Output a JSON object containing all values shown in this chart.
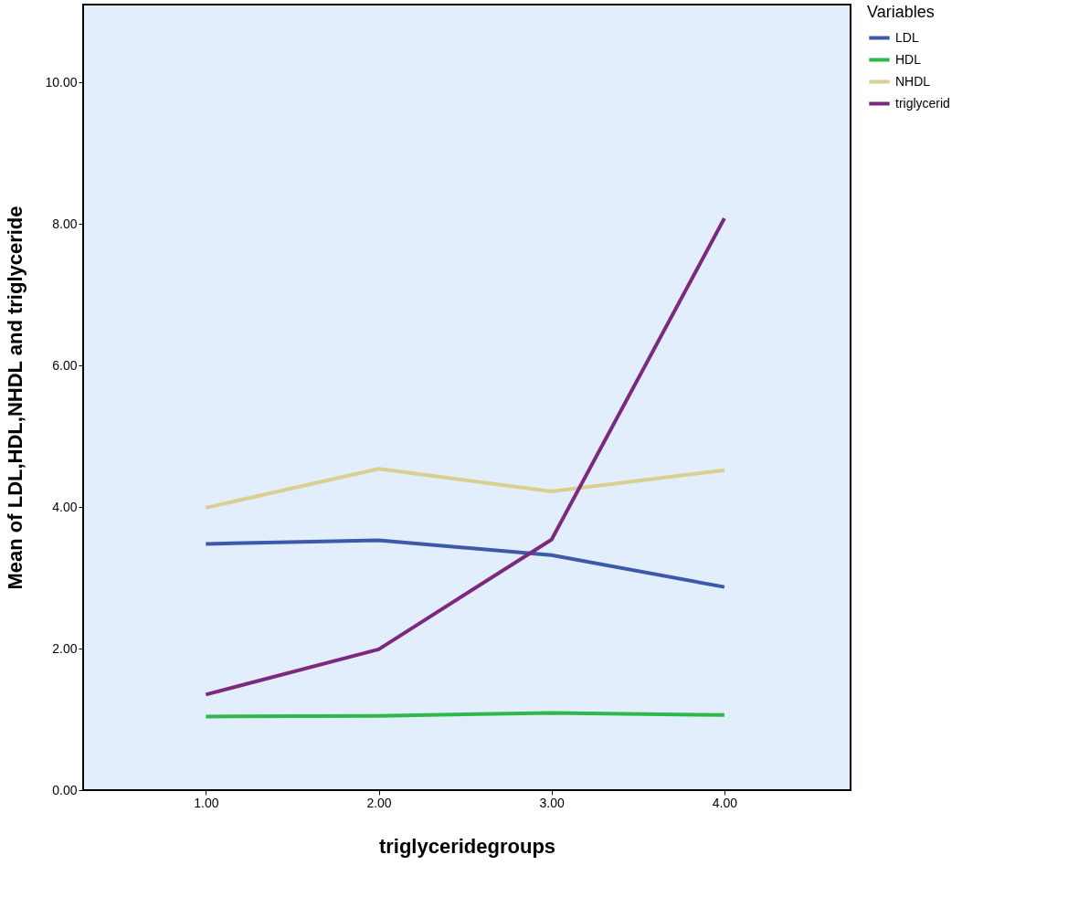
{
  "chart_data": {
    "type": "line",
    "xlabel": "triglyceridegroups",
    "ylabel": "Mean of LDL,HDL,NHDL and triglyceride",
    "legend_title": "Variables",
    "legend": "top right",
    "grid": false,
    "marker": "none",
    "line_style": "solid",
    "x": [
      1,
      2,
      3,
      4
    ],
    "xlim": [
      0.29,
      4.73
    ],
    "xticks": [
      {
        "value": 1,
        "label": "1.00"
      },
      {
        "value": 2,
        "label": "2.00"
      },
      {
        "value": 3,
        "label": "3.00"
      },
      {
        "value": 4,
        "label": "4.00"
      }
    ],
    "ylim": [
      0,
      11.1
    ],
    "yticks": [
      {
        "value": 0,
        "label": "0.00"
      },
      {
        "value": 2,
        "label": "2.00"
      },
      {
        "value": 4,
        "label": "4.00"
      },
      {
        "value": 6,
        "label": "6.00"
      },
      {
        "value": 8,
        "label": "8.00"
      },
      {
        "value": 10,
        "label": "10.00"
      }
    ],
    "series": [
      {
        "name": "LDL",
        "color": "#3e58ac",
        "values": [
          3.48,
          3.53,
          3.32,
          2.87
        ]
      },
      {
        "name": "HDL",
        "color": "#2db84b",
        "values": [
          1.04,
          1.05,
          1.09,
          1.06
        ]
      },
      {
        "name": "NHDL",
        "color": "#d8cf90",
        "values": [
          3.99,
          4.54,
          4.22,
          4.52
        ]
      },
      {
        "name": "triglycerid",
        "color": "#7b2a7f",
        "values": [
          1.35,
          1.99,
          3.54,
          8.08
        ]
      }
    ]
  }
}
